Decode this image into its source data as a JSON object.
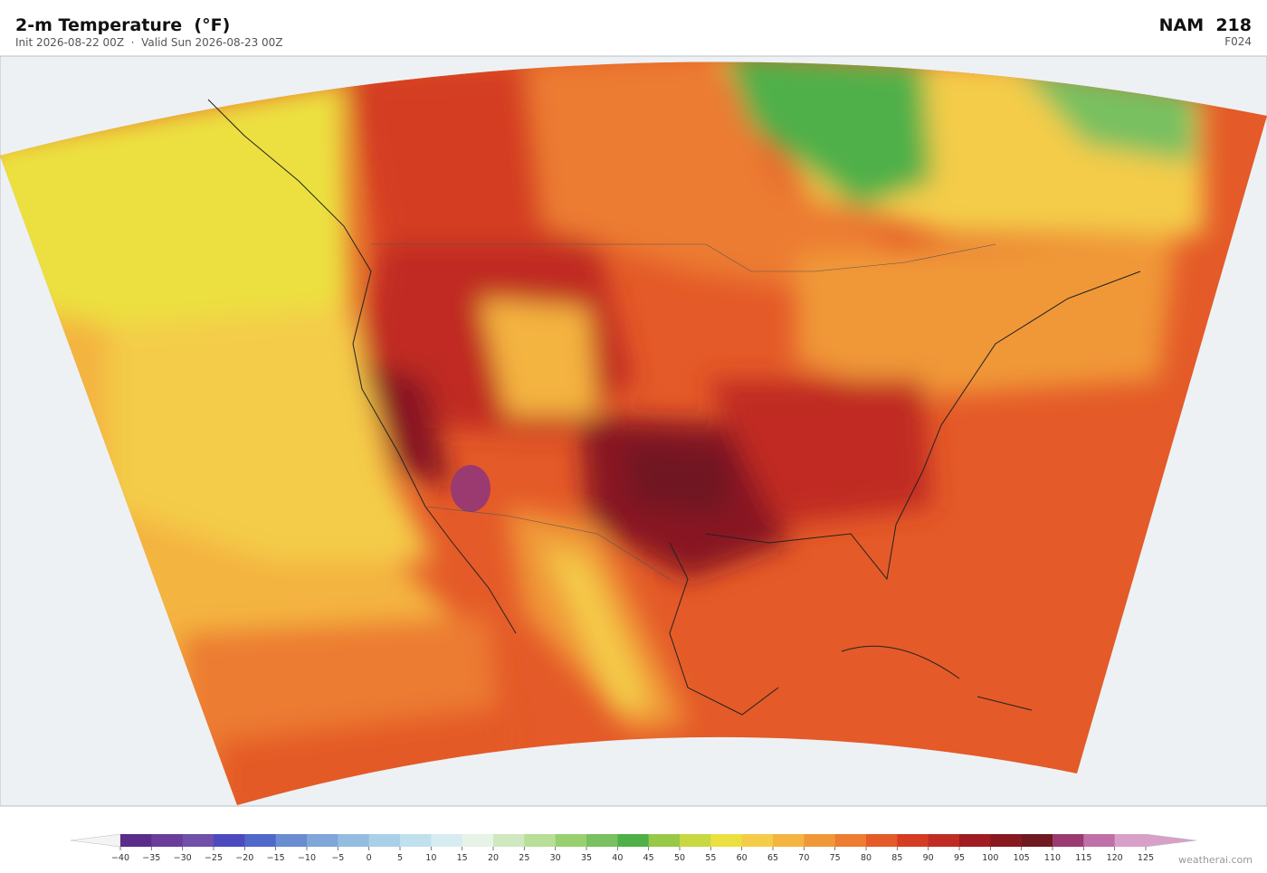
{
  "header": {
    "title": "2-m Temperature  (°F)",
    "subtitle": "Init 2026-08-22 00Z  ·  Valid Sun 2026-08-23 00Z",
    "model": "NAM  218",
    "forecast_hour": "F024"
  },
  "colorbar": {
    "ticks": [
      {
        "value": -40,
        "label": "−40"
      },
      {
        "value": -35,
        "label": "−35"
      },
      {
        "value": -30,
        "label": "−30"
      },
      {
        "value": -25,
        "label": "−25"
      },
      {
        "value": -20,
        "label": "−20"
      },
      {
        "value": -15,
        "label": "−15"
      },
      {
        "value": -10,
        "label": "−10"
      },
      {
        "value": -5,
        "label": "−5"
      },
      0,
      5,
      10,
      15,
      20,
      25,
      30,
      35,
      40,
      45,
      50,
      55,
      60,
      65,
      70,
      75,
      80,
      85,
      90,
      95,
      100,
      105,
      110,
      115,
      120,
      125
    ],
    "colors": [
      "#5a2d8a",
      "#6a3d9a",
      "#7050a8",
      "#4b4bbf",
      "#5068c8",
      "#6a8cd0",
      "#7fa6d8",
      "#93bde0",
      "#a9d0e8",
      "#c0e0ee",
      "#d6ecf0",
      "#e6f3e6",
      "#d0e8c0",
      "#b8de98",
      "#98d070",
      "#78c060",
      "#50b048",
      "#98c848",
      "#c8d840",
      "#ece040",
      "#f4cc48",
      "#f4b440",
      "#f09838",
      "#ec7c30",
      "#e45a28",
      "#d43c24",
      "#c02c24",
      "#a01c22",
      "#881820",
      "#701820",
      "#9a3a70",
      "#c070a8",
      "#d8a0c8"
    ],
    "under_color": "#f4f4f4",
    "over_color": "#d8a0c8"
  },
  "watermark": "weatherai.com"
}
